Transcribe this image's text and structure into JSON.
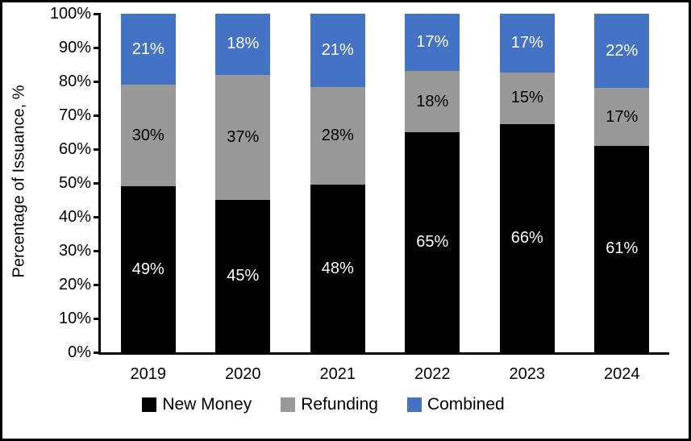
{
  "chart_data": {
    "type": "bar",
    "stacked": true,
    "title": "",
    "xlabel": "",
    "ylabel": "Percentage of Issuance, %",
    "ylim": [
      0,
      100
    ],
    "y_tick_step": 10,
    "y_tick_suffix": "%",
    "data_label_suffix": "%",
    "grid": false,
    "legend_position": "bottom",
    "categories": [
      "2019",
      "2020",
      "2021",
      "2022",
      "2023",
      "2024"
    ],
    "series": [
      {
        "name": "New Money",
        "color": "#000000",
        "label_color": "#ffffff",
        "values": [
          49,
          45,
          48,
          65,
          66,
          61
        ]
      },
      {
        "name": "Refunding",
        "color": "#999999",
        "label_color": "#000000",
        "values": [
          30,
          37,
          28,
          18,
          15,
          17
        ]
      },
      {
        "name": "Combined",
        "color": "#4472C4",
        "label_color": "#ffffff",
        "values": [
          21,
          18,
          21,
          17,
          17,
          22
        ]
      }
    ]
  }
}
